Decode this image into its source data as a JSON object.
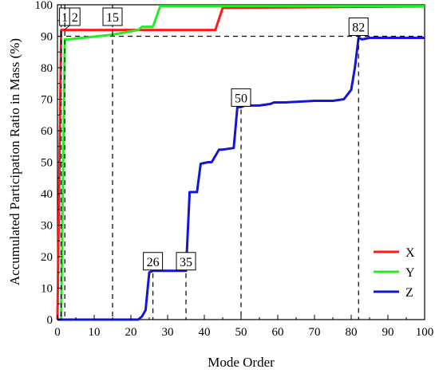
{
  "chart_data": {
    "type": "line",
    "title": "",
    "xlabel": "Mode Order",
    "ylabel": "Accumulated Participation Ratio in Mass  (%)",
    "xlim": [
      0,
      100
    ],
    "ylim": [
      0,
      100
    ],
    "xticks": [
      0,
      10,
      20,
      30,
      40,
      50,
      60,
      70,
      80,
      90,
      100
    ],
    "yticks": [
      0,
      10,
      20,
      30,
      40,
      50,
      60,
      70,
      80,
      90,
      100
    ],
    "grid": false,
    "legend_position": "bottom-right",
    "reference_line_y": 90,
    "series": [
      {
        "name": "X",
        "color": "#ff1a1a",
        "x": [
          0,
          1,
          2,
          15,
          20,
          22,
          43,
          45,
          100
        ],
        "y": [
          0,
          92,
          92,
          92,
          92,
          92,
          92,
          99,
          99.5
        ]
      },
      {
        "name": "Y",
        "color": "#22ee22",
        "x": [
          0,
          1,
          2,
          3,
          15,
          22,
          23,
          26,
          28,
          100
        ],
        "y": [
          0,
          0,
          89,
          89,
          90.5,
          92,
          93,
          93,
          99.6,
          99.6
        ]
      },
      {
        "name": "Z",
        "color": "#1515d6",
        "x": [
          0,
          1,
          2,
          22,
          23,
          24,
          25,
          26,
          35,
          36,
          37,
          38,
          39,
          41,
          42,
          44,
          45,
          48,
          49,
          50,
          51,
          55,
          58,
          59,
          62,
          70,
          75,
          78,
          80,
          81,
          82,
          83,
          85,
          100
        ],
        "y": [
          0,
          0,
          0,
          0,
          1,
          3,
          15,
          15.5,
          15.5,
          40.5,
          40.5,
          40.5,
          49.5,
          50,
          50,
          54,
          54,
          54.5,
          67.5,
          67.5,
          68,
          68,
          68.5,
          69,
          69,
          69.5,
          69.5,
          70,
          73,
          80,
          89.5,
          89,
          89.5,
          89.5
        ]
      }
    ],
    "annotations": [
      {
        "label": "1",
        "x": 1
      },
      {
        "label": "2",
        "x": 2
      },
      {
        "label": "15",
        "x": 15
      },
      {
        "label": "26",
        "x": 26
      },
      {
        "label": "35",
        "x": 35
      },
      {
        "label": "50",
        "x": 50
      },
      {
        "label": "82",
        "x": 82
      }
    ]
  }
}
